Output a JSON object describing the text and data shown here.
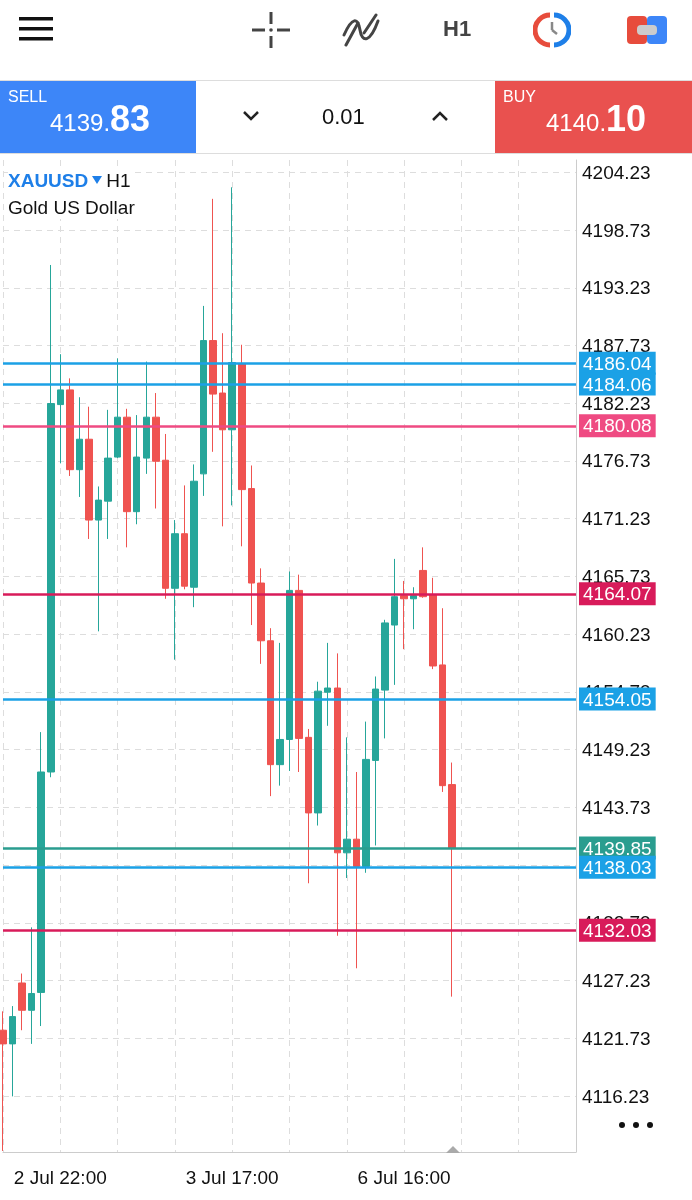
{
  "chart_data": {
    "type": "candlestick",
    "title": "XAUUSD",
    "subtitle": "Gold US Dollar",
    "annotations": [
      "H1",
      "SELL",
      "4139.83",
      "0.01",
      "BUY",
      "4140.10",
      "H1"
    ],
    "categories": [
      null,
      null,
      null,
      null,
      null,
      null,
      "2 Jul 22:00",
      null,
      null,
      null,
      null,
      null,
      null,
      null,
      null,
      null,
      null,
      null,
      null,
      null,
      null,
      null,
      null,
      null,
      "3 Jul 17:00",
      null,
      null,
      null,
      null,
      null,
      null,
      null,
      null,
      null,
      null,
      null,
      null,
      null,
      null,
      null,
      null,
      null,
      "6 Jul 16:00",
      null,
      null,
      null,
      null,
      null,
      null,
      null,
      null,
      null,
      null,
      null,
      null,
      null,
      null,
      null,
      null,
      null,
      null
    ],
    "ohlc": [
      [
        4122.5,
        4124.3,
        4111.0,
        4121.2
      ],
      [
        4121.2,
        4124.8,
        4116.2,
        4123.8
      ],
      [
        4127.0,
        4127.9,
        4122.5,
        4124.4
      ],
      [
        4124.4,
        4132.3,
        4121.2,
        4126.0
      ],
      [
        4126.1,
        4150.9,
        4122.9,
        4147.1
      ],
      [
        4147.1,
        4195.4,
        4146.6,
        4182.2
      ],
      [
        4182.1,
        4186.9,
        4176.5,
        4183.5
      ],
      [
        4183.5,
        4184.6,
        4175.3,
        4175.9
      ],
      [
        4175.9,
        4182.8,
        4173.3,
        4178.8
      ],
      [
        4178.8,
        4181.9,
        4169.3,
        4171.1
      ],
      [
        4171.1,
        4174.3,
        4160.5,
        4173.0
      ],
      [
        4172.9,
        4181.6,
        4169.3,
        4177.0
      ],
      [
        4177.1,
        4186.5,
        4177.0,
        4180.9
      ],
      [
        4180.9,
        4181.7,
        4168.5,
        4171.9
      ],
      [
        4171.9,
        4181.1,
        4170.7,
        4177.1
      ],
      [
        4177.0,
        4186.2,
        4175.5,
        4180.9
      ],
      [
        4180.9,
        4183.2,
        4172.2,
        4176.7
      ],
      [
        4176.8,
        4179.3,
        4163.6,
        4164.6
      ],
      [
        4164.6,
        4171.1,
        4157.8,
        4169.8
      ],
      [
        4169.8,
        4174.4,
        4164.5,
        4164.8
      ],
      [
        4164.7,
        4176.4,
        4162.8,
        4174.8
      ],
      [
        4175.5,
        4191.5,
        4173.4,
        4188.2
      ],
      [
        4188.2,
        4201.7,
        4177.6,
        4183.1
      ],
      [
        4183.2,
        4188.9,
        4170.5,
        4179.7
      ],
      [
        4179.7,
        4202.8,
        4172.5,
        4186.1
      ],
      [
        4186.0,
        4187.8,
        4168.6,
        4174.0
      ],
      [
        4174.1,
        4176.3,
        4161.1,
        4165.1
      ],
      [
        4165.1,
        4166.5,
        4157.4,
        4159.6
      ],
      [
        4159.6,
        4160.8,
        4144.8,
        4147.8
      ],
      [
        4147.8,
        4159.4,
        4145.8,
        4150.2
      ],
      [
        4150.2,
        4166.2,
        4147.2,
        4164.4
      ],
      [
        4164.4,
        4165.9,
        4147.1,
        4150.3
      ],
      [
        4150.4,
        4151.2,
        4136.5,
        4143.2
      ],
      [
        4143.2,
        4155.7,
        4142.0,
        4154.8
      ],
      [
        4154.7,
        4159.4,
        4151.5,
        4155.1
      ],
      [
        4155.1,
        4158.4,
        4131.5,
        4139.4
      ],
      [
        4139.4,
        4150.4,
        4137.0,
        4140.7
      ],
      [
        4140.7,
        4147.1,
        4128.4,
        4138.1
      ],
      [
        4138.1,
        4151.9,
        4137.5,
        4148.3
      ],
      [
        4148.2,
        4156.2,
        4140.1,
        4155.0
      ],
      [
        4154.9,
        4161.6,
        4150.3,
        4161.3
      ],
      [
        4161.1,
        4167.4,
        4155.4,
        4163.8
      ],
      [
        4163.9,
        4165.3,
        4158.8,
        4163.6
      ],
      [
        4163.6,
        4164.7,
        4160.7,
        4163.9
      ],
      [
        4166.3,
        4168.5,
        4163.7,
        4163.8
      ],
      [
        4164.0,
        4165.6,
        4156.9,
        4157.2
      ],
      [
        4157.3,
        4162.7,
        4145.2,
        4145.8
      ],
      [
        4145.9,
        4148.0,
        4125.7,
        4139.85
      ],
      null,
      null,
      null,
      null,
      null,
      null,
      null,
      null,
      null,
      null,
      null,
      null,
      null
    ],
    "colors": [
      "#ef5350",
      "#26a69a",
      "#ef5350",
      "#26a69a",
      "#26a69a",
      "#26a69a",
      "#26a69a",
      "#ef5350",
      "#26a69a",
      "#ef5350",
      "#26a69a",
      "#26a69a",
      "#26a69a",
      "#ef5350",
      "#26a69a",
      "#26a69a",
      "#ef5350",
      "#ef5350",
      "#26a69a",
      "#ef5350",
      "#26a69a",
      "#26a69a",
      "#ef5350",
      "#ef5350",
      "#26a69a",
      "#ef5350",
      "#ef5350",
      "#ef5350",
      "#ef5350",
      "#26a69a",
      "#26a69a",
      "#ef5350",
      "#ef5350",
      "#26a69a",
      "#26a69a",
      "#ef5350",
      "#26a69a",
      "#ef5350",
      "#26a69a",
      "#26a69a",
      "#26a69a",
      "#26a69a",
      "#ef5350",
      "#26a69a",
      "#ef5350",
      "#ef5350",
      "#ef5350",
      "#ef5350",
      null,
      null,
      null,
      null,
      null,
      null,
      null,
      null,
      null,
      null,
      null,
      null,
      null
    ],
    "ylim": [
      4110.9,
      4205.4
    ],
    "yticks": [
      4116.23,
      4121.73,
      4127.23,
      4132.73,
      {
        "value": 4138.23,
        "label": null
      },
      4143.73,
      4149.23,
      4154.73,
      4160.23,
      4165.73,
      4171.23,
      4176.73,
      4182.23,
      4187.73,
      4193.23,
      4198.73,
      4204.23
    ],
    "ref_lines": [
      {
        "axis": "y",
        "value": 4186.04,
        "label": "4186.04",
        "color": "#1ba1e6"
      },
      {
        "axis": "y",
        "value": 4184.06,
        "label": "4184.06",
        "color": "#1ba1e6"
      },
      {
        "axis": "y",
        "value": 4180.08,
        "label": "4180.08",
        "color": "#ef4a82"
      },
      {
        "axis": "y",
        "value": 4164.07,
        "label": "4164.07",
        "color": "#d81b5a"
      },
      {
        "axis": "y",
        "value": 4154.05,
        "label": "4154.05",
        "color": "#1ba1e6"
      },
      {
        "axis": "y",
        "value": 4139.85,
        "label": "4139.85",
        "color": "#2a9d8f"
      },
      {
        "axis": "y",
        "value": 4138.03,
        "label": "4138.03",
        "color": "#1ba1e6"
      },
      {
        "axis": "y",
        "value": 4132.03,
        "label": "4132.03",
        "color": "#d81b5a"
      }
    ],
    "grid": true
  }
}
